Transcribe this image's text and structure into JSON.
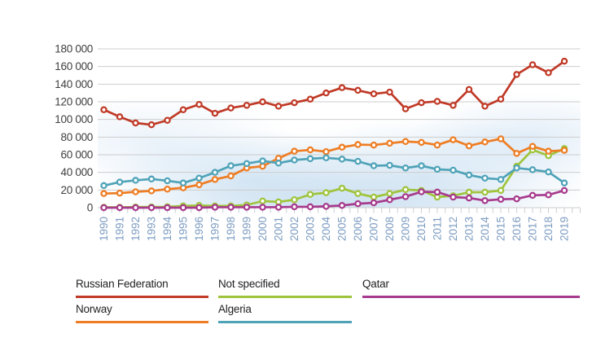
{
  "chart_data": {
    "type": "line",
    "x_years": [
      1990,
      1991,
      1992,
      1993,
      1994,
      1995,
      1996,
      1997,
      1998,
      1999,
      2000,
      2001,
      2002,
      2003,
      2004,
      2005,
      2006,
      2007,
      2008,
      2009,
      2010,
      2011,
      2012,
      2013,
      2014,
      2015,
      2016,
      2017,
      2018,
      2019
    ],
    "series": [
      {
        "name": "Russian Federation",
        "color": "#c03a27",
        "values": [
          111000,
          103000,
          96000,
          94000,
          99000,
          111000,
          117000,
          107000,
          113000,
          116000,
          120000,
          115000,
          119000,
          123000,
          130000,
          136000,
          133000,
          129000,
          131000,
          112000,
          119000,
          120500,
          116000,
          134000,
          115000,
          123000,
          151000,
          162000,
          153000,
          166000
        ]
      },
      {
        "name": "Norway",
        "color": "#ee7d23",
        "values": [
          16000,
          16500,
          18000,
          19000,
          21000,
          22500,
          26000,
          32000,
          36000,
          45000,
          47000,
          56000,
          64000,
          65500,
          63500,
          68500,
          71500,
          71000,
          73000,
          75000,
          74000,
          71000,
          77000,
          70000,
          74500,
          78000,
          61500,
          69500,
          64000,
          65000
        ]
      },
      {
        "name": "Not specified",
        "color": "#9fc43c",
        "values": [
          500,
          500,
          700,
          800,
          1000,
          2000,
          2500,
          2000,
          2000,
          3000,
          7500,
          6500,
          9000,
          15000,
          17000,
          22000,
          16000,
          12000,
          16000,
          20500,
          19500,
          12000,
          13500,
          17500,
          17500,
          19500,
          47000,
          65500,
          59000,
          67000
        ]
      },
      {
        "name": "Algeria",
        "color": "#4fa3b8",
        "values": [
          25000,
          29000,
          31000,
          32500,
          30500,
          28000,
          33500,
          40000,
          47500,
          50000,
          53000,
          50500,
          54000,
          55500,
          56500,
          55000,
          52500,
          47500,
          48000,
          45000,
          47500,
          43500,
          42500,
          37000,
          33500,
          32000,
          45000,
          43000,
          40500,
          28000
        ]
      },
      {
        "name": "Qatar",
        "color": "#a73a8d",
        "values": [
          0,
          0,
          0,
          0,
          0,
          0,
          0,
          500,
          500,
          500,
          500,
          500,
          1000,
          1000,
          1500,
          2500,
          4500,
          5500,
          9000,
          12500,
          18000,
          17700,
          12000,
          11000,
          8000,
          9500,
          10000,
          14000,
          14500,
          19500
        ]
      }
    ],
    "title": "",
    "xlabel": "",
    "ylabel": "",
    "ylim": [
      0,
      180000
    ],
    "grid": true,
    "legend_position": "bottom"
  },
  "axes": {
    "y_tick_labels": [
      "0",
      "20 000",
      "40 000",
      "60 000",
      "80 000",
      "100 000",
      "120 000",
      "140 000",
      "160 000",
      "180 000"
    ],
    "x_tick_labels": [
      "1990",
      "1991",
      "1992",
      "1993",
      "1994",
      "1995",
      "1996",
      "1997",
      "1998",
      "1999",
      "2000",
      "2001",
      "2002",
      "2003",
      "2004",
      "2005",
      "2006",
      "2007",
      "2008",
      "2009",
      "2010",
      "2011",
      "2012",
      "2013",
      "2014",
      "2015",
      "2016",
      "2017",
      "2018",
      "2019"
    ]
  },
  "legend": {
    "items": [
      {
        "label": "Russian Federation"
      },
      {
        "label": "Norway"
      },
      {
        "label": "Not specified"
      },
      {
        "label": "Algeria"
      },
      {
        "label": "Qatar"
      }
    ]
  },
  "style_colors": {
    "gridline": "#cdcdcd",
    "tick": "#c9ced6",
    "x_label_text": "#7d9cc2",
    "y_label_text": "#3f3f3f",
    "marker_core": "#ffffff"
  }
}
